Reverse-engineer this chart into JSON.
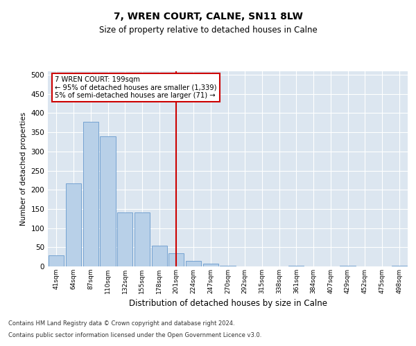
{
  "title": "7, WREN COURT, CALNE, SN11 8LW",
  "subtitle": "Size of property relative to detached houses in Calne",
  "xlabel": "Distribution of detached houses by size in Calne",
  "ylabel": "Number of detached properties",
  "bar_labels": [
    "41sqm",
    "64sqm",
    "87sqm",
    "110sqm",
    "132sqm",
    "155sqm",
    "178sqm",
    "201sqm",
    "224sqm",
    "247sqm",
    "270sqm",
    "292sqm",
    "315sqm",
    "338sqm",
    "361sqm",
    "384sqm",
    "407sqm",
    "429sqm",
    "452sqm",
    "475sqm",
    "498sqm"
  ],
  "bar_values": [
    28,
    216,
    378,
    340,
    140,
    140,
    55,
    35,
    15,
    8,
    2,
    0,
    0,
    0,
    1,
    0,
    0,
    1,
    0,
    0,
    1
  ],
  "bar_color": "#b8d0e8",
  "bar_edge_color": "#6699cc",
  "vline_x_idx": 7,
  "vline_color": "#cc0000",
  "annotation_text": "7 WREN COURT: 199sqm\n← 95% of detached houses are smaller (1,339)\n5% of semi-detached houses are larger (71) →",
  "annotation_box_color": "#ffffff",
  "annotation_box_edge": "#cc0000",
  "ylim": [
    0,
    510
  ],
  "yticks": [
    0,
    50,
    100,
    150,
    200,
    250,
    300,
    350,
    400,
    450,
    500
  ],
  "bg_color": "#dce6f0",
  "plot_bg_color": "#dce6f0",
  "footer_line1": "Contains HM Land Registry data © Crown copyright and database right 2024.",
  "footer_line2": "Contains public sector information licensed under the Open Government Licence v3.0."
}
